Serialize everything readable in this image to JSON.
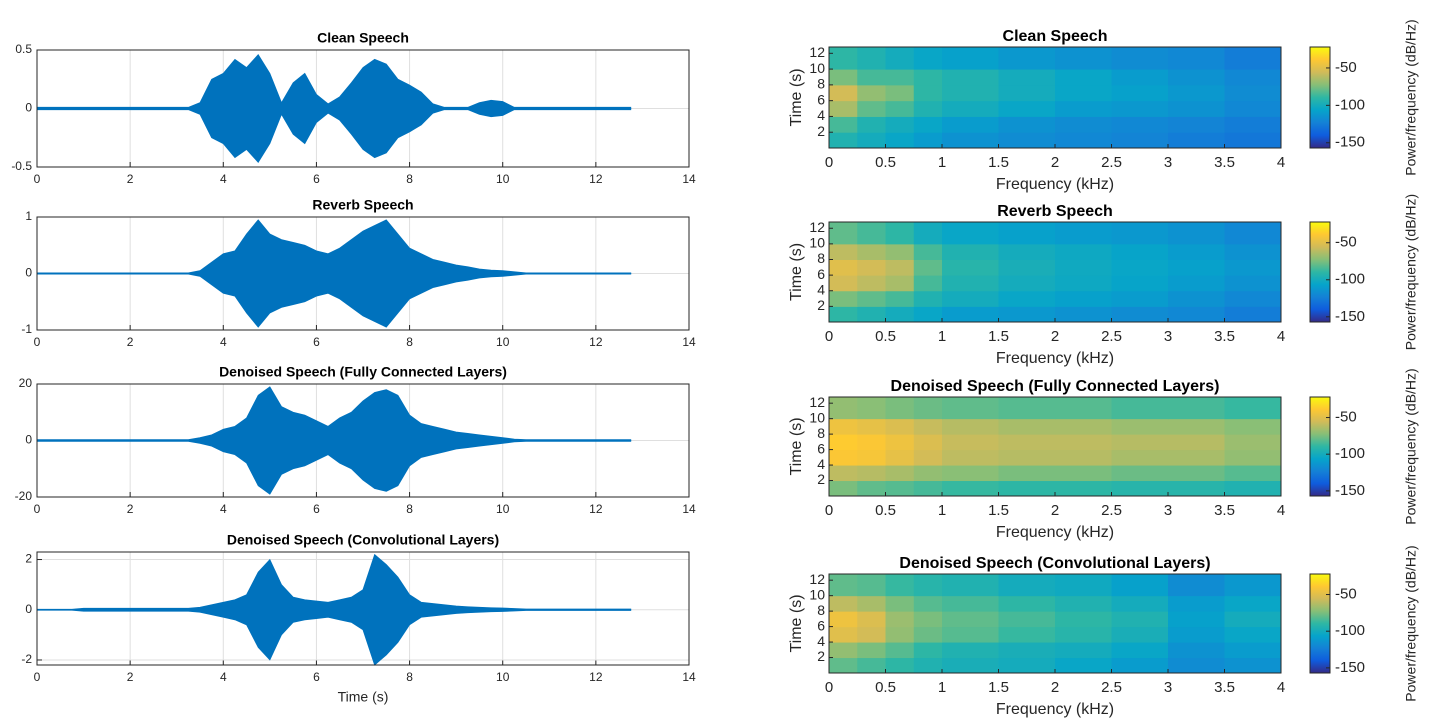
{
  "chart_data": [
    {
      "type": "waveform",
      "title": "Clean Speech",
      "color": "#0072bd",
      "grid": true,
      "x": [
        0,
        0.25,
        0.5,
        0.75,
        1,
        1.25,
        1.5,
        1.75,
        2,
        2.25,
        2.5,
        2.75,
        3,
        3.25,
        3.5,
        3.75,
        4,
        4.25,
        4.5,
        4.75,
        5,
        5.25,
        5.5,
        5.75,
        6,
        6.25,
        6.5,
        6.75,
        7,
        7.25,
        7.5,
        7.75,
        8,
        8.25,
        8.5,
        8.75,
        9,
        9.25,
        9.5,
        9.75,
        10,
        10.25,
        10.5,
        10.75,
        11,
        11.25,
        11.5,
        11.75,
        12,
        12.25,
        12.5,
        12.75
      ],
      "values": [
        0.01,
        0.01,
        0.01,
        0.01,
        0.01,
        0.01,
        0.01,
        0.01,
        0.01,
        0.01,
        0.01,
        0.01,
        0.01,
        0.01,
        0.05,
        0.25,
        0.3,
        0.42,
        0.35,
        0.46,
        0.3,
        0.05,
        0.22,
        0.3,
        0.12,
        0.04,
        0.1,
        0.22,
        0.35,
        0.42,
        0.38,
        0.25,
        0.2,
        0.14,
        0.04,
        0.01,
        0.01,
        0.01,
        0.05,
        0.07,
        0.06,
        0.01,
        0.01,
        0.01,
        0.01,
        0.01,
        0.01,
        0.01,
        0.01,
        0.01,
        0.01,
        0.01
      ],
      "xlim": [
        0,
        14
      ],
      "xticks": [
        0,
        2,
        4,
        6,
        8,
        10,
        12,
        14
      ],
      "ylim": [
        -0.5,
        0.5
      ],
      "yticks": [
        -0.5,
        0,
        0.5
      ]
    },
    {
      "type": "waveform",
      "title": "Reverb Speech",
      "color": "#0072bd",
      "grid": true,
      "x": [
        0,
        0.25,
        0.5,
        0.75,
        1,
        1.25,
        1.5,
        1.75,
        2,
        2.25,
        2.5,
        2.75,
        3,
        3.25,
        3.5,
        3.75,
        4,
        4.25,
        4.5,
        4.75,
        5,
        5.25,
        5.5,
        5.75,
        6,
        6.25,
        6.5,
        6.75,
        7,
        7.25,
        7.5,
        7.75,
        8,
        8.25,
        8.5,
        8.75,
        9,
        9.25,
        9.5,
        9.75,
        10,
        10.25,
        10.5,
        10.75,
        11,
        11.25,
        11.5,
        11.75,
        12,
        12.25,
        12.5,
        12.75
      ],
      "values": [
        0.01,
        0.01,
        0.01,
        0.01,
        0.01,
        0.01,
        0.01,
        0.01,
        0.01,
        0.01,
        0.01,
        0.01,
        0.01,
        0.01,
        0.05,
        0.2,
        0.35,
        0.4,
        0.7,
        0.95,
        0.7,
        0.6,
        0.55,
        0.5,
        0.4,
        0.35,
        0.45,
        0.6,
        0.75,
        0.85,
        0.95,
        0.7,
        0.45,
        0.35,
        0.25,
        0.2,
        0.15,
        0.12,
        0.08,
        0.06,
        0.05,
        0.03,
        0.01,
        0.01,
        0.01,
        0.01,
        0.01,
        0.01,
        0.01,
        0.01,
        0.01,
        0.01
      ],
      "xlim": [
        0,
        14
      ],
      "xticks": [
        0,
        2,
        4,
        6,
        8,
        10,
        12,
        14
      ],
      "ylim": [
        -1,
        1
      ],
      "yticks": [
        -1,
        0,
        1
      ]
    },
    {
      "type": "waveform",
      "title": "Denoised Speech (Fully Connected Layers)",
      "color": "#0072bd",
      "grid": true,
      "x": [
        0,
        0.25,
        0.5,
        0.75,
        1,
        1.25,
        1.5,
        1.75,
        2,
        2.25,
        2.5,
        2.75,
        3,
        3.25,
        3.5,
        3.75,
        4,
        4.25,
        4.5,
        4.75,
        5,
        5.25,
        5.5,
        5.75,
        6,
        6.25,
        6.5,
        6.75,
        7,
        7.25,
        7.5,
        7.75,
        8,
        8.25,
        8.5,
        8.75,
        9,
        9.25,
        9.5,
        9.75,
        10,
        10.25,
        10.5,
        10.75,
        11,
        11.25,
        11.5,
        11.75,
        12,
        12.25,
        12.5,
        12.75
      ],
      "values": [
        0.3,
        0.3,
        0.3,
        0.3,
        0.3,
        0.3,
        0.3,
        0.3,
        0.3,
        0.3,
        0.3,
        0.3,
        0.3,
        0.3,
        1,
        2,
        4,
        5,
        8,
        16,
        19,
        12,
        10,
        9,
        7,
        5,
        8,
        10,
        14,
        17,
        18,
        16,
        9,
        6,
        5,
        4,
        3,
        2.5,
        2,
        1.5,
        1,
        0.5,
        0.3,
        0.3,
        0.3,
        0.3,
        0.3,
        0.3,
        0.3,
        0.3,
        0.3,
        0.3
      ],
      "xlim": [
        0,
        14
      ],
      "xticks": [
        0,
        2,
        4,
        6,
        8,
        10,
        12,
        14
      ],
      "ylim": [
        -20,
        20
      ],
      "yticks": [
        -20,
        0,
        20
      ]
    },
    {
      "type": "waveform",
      "title": "Denoised Speech (Convolutional Layers)",
      "xlabel": "Time (s)",
      "color": "#0072bd",
      "grid": true,
      "x": [
        0,
        0.25,
        0.5,
        0.75,
        1,
        1.25,
        1.5,
        1.75,
        2,
        2.25,
        2.5,
        2.75,
        3,
        3.25,
        3.5,
        3.75,
        4,
        4.25,
        4.5,
        4.75,
        5,
        5.25,
        5.5,
        5.75,
        6,
        6.25,
        6.5,
        6.75,
        7,
        7.25,
        7.5,
        7.75,
        8,
        8.25,
        8.5,
        8.75,
        9,
        9.25,
        9.5,
        9.75,
        10,
        10.25,
        10.5,
        10.75,
        11,
        11.25,
        11.5,
        11.75,
        12,
        12.25,
        12.5,
        12.75
      ],
      "values": [
        0.02,
        0.02,
        0.02,
        0.02,
        0.06,
        0.06,
        0.06,
        0.06,
        0.06,
        0.06,
        0.06,
        0.06,
        0.06,
        0.06,
        0.1,
        0.2,
        0.3,
        0.4,
        0.6,
        1.5,
        2,
        1,
        0.5,
        0.4,
        0.35,
        0.3,
        0.4,
        0.5,
        0.8,
        2.2,
        1.8,
        1.3,
        0.6,
        0.3,
        0.25,
        0.2,
        0.15,
        0.12,
        0.1,
        0.08,
        0.07,
        0.05,
        0.03,
        0.03,
        0.03,
        0.03,
        0.03,
        0.03,
        0.03,
        0.03,
        0.03,
        0.03
      ],
      "xlim": [
        0,
        14
      ],
      "xticks": [
        0,
        2,
        4,
        6,
        8,
        10,
        12,
        14
      ],
      "ylim": [
        -2.2,
        2.3
      ],
      "yticks": [
        -2,
        0,
        2
      ]
    },
    {
      "type": "heatmap",
      "title": "Clean Speech",
      "xlabel": "Frequency (kHz)",
      "ylabel": "Time (s)",
      "clabel": "Power/frequency (dB/Hz)",
      "x_edges": [
        0,
        0.25,
        0.5,
        0.75,
        1,
        1.5,
        2,
        2.5,
        3,
        3.5,
        4
      ],
      "y_edges": [
        0,
        2,
        4,
        6,
        8,
        10,
        12.8
      ],
      "values": [
        [
          -95,
          -100,
          -105,
          -110,
          -115,
          -118,
          -120,
          -122,
          -125,
          -128
        ],
        [
          -85,
          -95,
          -100,
          -105,
          -110,
          -115,
          -118,
          -120,
          -122,
          -125
        ],
        [
          -65,
          -80,
          -85,
          -95,
          -100,
          -105,
          -110,
          -112,
          -115,
          -120
        ],
        [
          -55,
          -70,
          -75,
          -90,
          -95,
          -100,
          -105,
          -108,
          -112,
          -118
        ],
        [
          -75,
          -85,
          -85,
          -90,
          -95,
          -100,
          -105,
          -110,
          -115,
          -120
        ],
        [
          -90,
          -95,
          -100,
          -105,
          -108,
          -112,
          -115,
          -118,
          -120,
          -125
        ]
      ],
      "xlim": [
        0,
        4
      ],
      "xticks": [
        0,
        0.5,
        1,
        1.5,
        2,
        2.5,
        3,
        3.5,
        4
      ],
      "ylim": [
        0,
        12.8
      ],
      "yticks": [
        2,
        4,
        6,
        8,
        10,
        12
      ],
      "clim": [
        -157,
        -22
      ],
      "cticks": [
        -50,
        -100,
        -150
      ],
      "colormap": [
        "#352a87",
        "#0f5cdd",
        "#1481d6",
        "#06a4ca",
        "#2eb7a4",
        "#87bf77",
        "#d1bb59",
        "#fec832",
        "#f9fb0e"
      ]
    },
    {
      "type": "heatmap",
      "title": "Reverb Speech",
      "xlabel": "Frequency (kHz)",
      "ylabel": "Time (s)",
      "clabel": "Power/frequency (dB/Hz)",
      "x_edges": [
        0,
        0.25,
        0.5,
        0.75,
        1,
        1.5,
        2,
        2.5,
        3,
        3.5,
        4
      ],
      "y_edges": [
        0,
        2,
        4,
        6,
        8,
        10,
        12.8
      ],
      "values": [
        [
          -90,
          -95,
          -100,
          -105,
          -110,
          -112,
          -115,
          -118,
          -120,
          -125
        ],
        [
          -75,
          -80,
          -85,
          -95,
          -100,
          -105,
          -108,
          -110,
          -115,
          -120
        ],
        [
          -55,
          -60,
          -65,
          -85,
          -95,
          -100,
          -103,
          -106,
          -110,
          -115
        ],
        [
          -50,
          -55,
          -60,
          -80,
          -92,
          -98,
          -102,
          -105,
          -108,
          -112
        ],
        [
          -60,
          -65,
          -70,
          -85,
          -95,
          -100,
          -103,
          -106,
          -110,
          -115
        ],
        [
          -80,
          -85,
          -90,
          -100,
          -105,
          -108,
          -110,
          -112,
          -115,
          -120
        ]
      ],
      "xlim": [
        0,
        4
      ],
      "xticks": [
        0,
        0.5,
        1,
        1.5,
        2,
        2.5,
        3,
        3.5,
        4
      ],
      "ylim": [
        0,
        12.8
      ],
      "yticks": [
        2,
        4,
        6,
        8,
        10,
        12
      ],
      "clim": [
        -157,
        -22
      ],
      "cticks": [
        -50,
        -100,
        -150
      ],
      "colormap": [
        "#352a87",
        "#0f5cdd",
        "#1481d6",
        "#06a4ca",
        "#2eb7a4",
        "#87bf77",
        "#d1bb59",
        "#fec832",
        "#f9fb0e"
      ]
    },
    {
      "type": "heatmap",
      "title": "Denoised Speech (Fully Connected Layers)",
      "xlabel": "Frequency (kHz)",
      "ylabel": "Time (s)",
      "clabel": "Power/frequency (dB/Hz)",
      "x_edges": [
        0,
        0.25,
        0.5,
        0.75,
        1,
        1.5,
        2,
        2.5,
        3,
        3.5,
        4
      ],
      "y_edges": [
        0,
        2,
        4,
        6,
        8,
        10,
        12.8
      ],
      "values": [
        [
          -75,
          -80,
          -82,
          -85,
          -88,
          -90,
          -90,
          -92,
          -92,
          -95
        ],
        [
          -60,
          -62,
          -65,
          -70,
          -72,
          -75,
          -75,
          -78,
          -78,
          -82
        ],
        [
          -40,
          -42,
          -48,
          -55,
          -60,
          -62,
          -62,
          -65,
          -65,
          -70
        ],
        [
          -38,
          -40,
          -45,
          -52,
          -58,
          -60,
          -60,
          -62,
          -62,
          -68
        ],
        [
          -45,
          -48,
          -52,
          -58,
          -62,
          -65,
          -65,
          -68,
          -68,
          -72
        ],
        [
          -70,
          -72,
          -75,
          -78,
          -80,
          -82,
          -82,
          -85,
          -85,
          -88
        ]
      ],
      "xlim": [
        0,
        4
      ],
      "xticks": [
        0,
        0.5,
        1,
        1.5,
        2,
        2.5,
        3,
        3.5,
        4
      ],
      "ylim": [
        0,
        12.8
      ],
      "yticks": [
        2,
        4,
        6,
        8,
        10,
        12
      ],
      "clim": [
        -157,
        -22
      ],
      "cticks": [
        -50,
        -100,
        -150
      ],
      "colormap": [
        "#352a87",
        "#0f5cdd",
        "#1481d6",
        "#06a4ca",
        "#2eb7a4",
        "#87bf77",
        "#d1bb59",
        "#fec832",
        "#f9fb0e"
      ]
    },
    {
      "type": "heatmap",
      "title": "Denoised Speech (Convolutional Layers)",
      "xlabel": "Frequency (kHz)",
      "ylabel": "Time (s)",
      "clabel": "Power/frequency (dB/Hz)",
      "x_edges": [
        0,
        0.25,
        0.5,
        0.75,
        1,
        1.5,
        2,
        2.5,
        3,
        3.5,
        4
      ],
      "y_edges": [
        0,
        2,
        4,
        6,
        8,
        10,
        12.8
      ],
      "values": [
        [
          -80,
          -85,
          -90,
          -95,
          -98,
          -100,
          -105,
          -110,
          -118,
          -115
        ],
        [
          -70,
          -75,
          -82,
          -90,
          -95,
          -98,
          -100,
          -105,
          -115,
          -110
        ],
        [
          -50,
          -55,
          -70,
          -78,
          -82,
          -88,
          -92,
          -98,
          -110,
          -105
        ],
        [
          -45,
          -52,
          -68,
          -75,
          -80,
          -85,
          -90,
          -95,
          -108,
          -100
        ],
        [
          -60,
          -65,
          -75,
          -82,
          -85,
          -90,
          -95,
          -100,
          -110,
          -105
        ],
        [
          -80,
          -82,
          -88,
          -92,
          -95,
          -100,
          -102,
          -108,
          -118,
          -112
        ]
      ],
      "xlim": [
        0,
        4
      ],
      "xticks": [
        0,
        0.5,
        1,
        1.5,
        2,
        2.5,
        3,
        3.5,
        4
      ],
      "ylim": [
        0,
        12.8
      ],
      "yticks": [
        2,
        4,
        6,
        8,
        10,
        12
      ],
      "clim": [
        -157,
        -22
      ],
      "cticks": [
        -50,
        -100,
        -150
      ],
      "colormap": [
        "#352a87",
        "#0f5cdd",
        "#1481d6",
        "#06a4ca",
        "#2eb7a4",
        "#87bf77",
        "#d1bb59",
        "#fec832",
        "#f9fb0e"
      ]
    }
  ]
}
